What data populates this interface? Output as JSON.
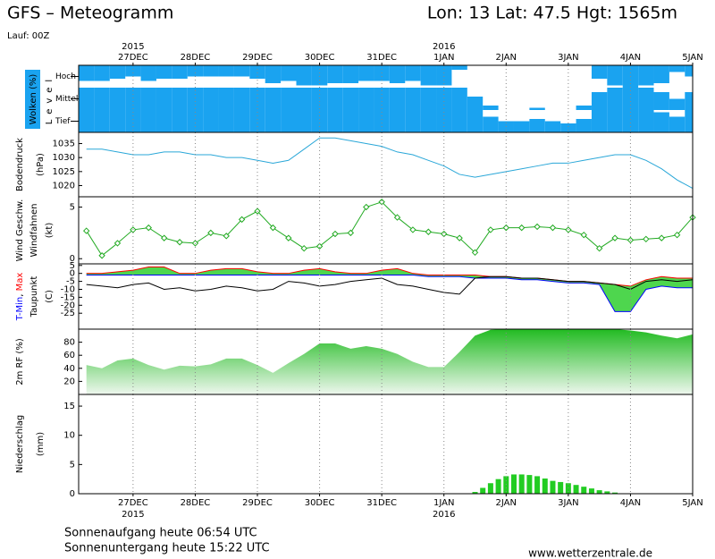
{
  "header": {
    "title": "GFS – Meteogramm",
    "location": "Lon: 13 Lat: 47.5 Hgt: 1565m",
    "run": "Lauf: 00Z"
  },
  "footer": {
    "sunrise": "Sonnenaufgang heute 06:54 UTC",
    "sunset": "Sonnenuntergang heute 15:22 UTC",
    "source": "www.wetterzentrale.de"
  },
  "chart_data": [
    {
      "type": "clouds",
      "ylabel": [
        "Wolken (%)",
        "Level"
      ],
      "color": "#1aa3f0",
      "xlim": [
        -21,
        216
      ],
      "xticks": [
        {
          "value": 0,
          "label": "27DEC"
        },
        {
          "value": 24,
          "label": "28DEC"
        },
        {
          "value": 48,
          "label": "29DEC"
        },
        {
          "value": 72,
          "label": "30DEC"
        },
        {
          "value": 96,
          "label": "31DEC"
        },
        {
          "value": 120,
          "label": "1JAN"
        },
        {
          "value": 144,
          "label": "2JAN"
        },
        {
          "value": 168,
          "label": "3JAN"
        },
        {
          "value": 192,
          "label": "4JAN"
        },
        {
          "value": 216,
          "label": "5JAN"
        }
      ],
      "year_labels": [
        {
          "value": 0,
          "label": "2015"
        },
        {
          "value": 120,
          "label": "2016"
        }
      ],
      "x": [
        -18,
        -12,
        -6,
        0,
        6,
        12,
        18,
        24,
        30,
        36,
        42,
        48,
        54,
        60,
        66,
        72,
        78,
        84,
        90,
        96,
        102,
        108,
        114,
        120,
        126,
        132,
        138,
        144,
        150,
        156,
        162,
        168,
        174,
        180,
        186,
        192,
        198,
        204,
        210,
        216
      ],
      "series": [
        {
          "name": "Hoch",
          "values": [
            70,
            70,
            60,
            50,
            70,
            60,
            60,
            50,
            50,
            50,
            50,
            60,
            80,
            70,
            90,
            90,
            80,
            80,
            70,
            70,
            80,
            70,
            90,
            90,
            20,
            0,
            0,
            0,
            0,
            0,
            0,
            0,
            0,
            60,
            90,
            100,
            90,
            80,
            30,
            50
          ]
        },
        {
          "name": "Mittel",
          "values": [
            100,
            100,
            100,
            100,
            100,
            100,
            100,
            100,
            100,
            100,
            100,
            100,
            100,
            100,
            100,
            100,
            100,
            100,
            100,
            100,
            100,
            100,
            100,
            100,
            100,
            60,
            20,
            0,
            0,
            10,
            0,
            0,
            20,
            80,
            100,
            100,
            100,
            80,
            50,
            80
          ]
        },
        {
          "name": "Tief",
          "values": [
            100,
            100,
            100,
            100,
            100,
            100,
            100,
            100,
            100,
            100,
            100,
            100,
            100,
            100,
            100,
            100,
            100,
            100,
            100,
            100,
            100,
            100,
            100,
            100,
            100,
            100,
            70,
            50,
            50,
            60,
            50,
            40,
            60,
            100,
            100,
            100,
            100,
            90,
            70,
            100
          ]
        }
      ]
    },
    {
      "type": "line",
      "ylabel": [
        "Bodendruck",
        "(hPa)"
      ],
      "color": "#2aa7d8",
      "xlim": [
        -21,
        216
      ],
      "ylim": [
        1016,
        1039
      ],
      "yticks": [
        1020,
        1025,
        1030,
        1035
      ],
      "x": [
        -18,
        -12,
        -6,
        0,
        6,
        12,
        18,
        24,
        30,
        36,
        42,
        48,
        54,
        60,
        66,
        72,
        78,
        84,
        90,
        96,
        102,
        108,
        114,
        120,
        126,
        132,
        138,
        144,
        150,
        156,
        162,
        168,
        174,
        180,
        186,
        192,
        198,
        204,
        210,
        216
      ],
      "values": [
        1033,
        1033,
        1032,
        1031,
        1031,
        1032,
        1032,
        1031,
        1031,
        1030,
        1030,
        1029,
        1028,
        1029,
        1033,
        1037,
        1037,
        1036,
        1035,
        1034,
        1032,
        1031,
        1029,
        1027,
        1024,
        1023,
        1024,
        1025,
        1026,
        1027,
        1028,
        1028,
        1029,
        1030,
        1031,
        1031,
        1029,
        1026,
        1022,
        1019
      ]
    },
    {
      "type": "wind",
      "ylabel": [
        "Windfahnen",
        "(kt)"
      ],
      "xlim": [
        -21,
        216
      ],
      "ylim": [
        -0.5,
        6
      ],
      "yticks": [
        0,
        5
      ],
      "x": [
        -18,
        -12,
        -6,
        0,
        6,
        12,
        18,
        24,
        30,
        36,
        42,
        48,
        54,
        60,
        66,
        72,
        78,
        84,
        90,
        96,
        102,
        108,
        114,
        120,
        126,
        132,
        138,
        144,
        150,
        156,
        162,
        168,
        174,
        180,
        186,
        192,
        198,
        204,
        210,
        216
      ],
      "series": [
        {
          "name": "Wind Geschw.",
          "color": "#22aa22",
          "values": [
            2.7,
            0.3,
            1.5,
            2.8,
            3,
            2,
            1.6,
            1.5,
            2.5,
            2.2,
            3.8,
            4.6,
            3,
            2,
            1,
            1.2,
            2.4,
            2.5,
            5,
            5.5,
            4,
            2.8,
            2.6,
            2.4,
            2,
            0.6,
            2.8,
            3,
            3,
            3.1,
            3,
            2.8,
            2.3,
            1,
            2,
            1.8,
            1.9,
            2,
            2.3,
            4
          ]
        }
      ]
    },
    {
      "type": "temperature",
      "unit": "(C)",
      "legend_separator": ", ",
      "band_color": "#22cc22",
      "xlim": [
        -21,
        216
      ],
      "ylim": [
        -35,
        6
      ],
      "yticks": [
        5,
        0,
        -5,
        -10,
        -15,
        -20,
        -25
      ],
      "x": [
        -18,
        -12,
        -6,
        0,
        6,
        12,
        18,
        24,
        30,
        36,
        42,
        48,
        54,
        60,
        66,
        72,
        78,
        84,
        90,
        96,
        102,
        108,
        114,
        120,
        126,
        132,
        138,
        144,
        150,
        156,
        162,
        168,
        174,
        180,
        186,
        192,
        198,
        204,
        210,
        216
      ],
      "series": [
        {
          "name": "T-Min",
          "color": "#0000ff",
          "values": [
            -1,
            -1,
            -1,
            -1,
            -1,
            -1,
            -1,
            -1,
            -1,
            -1,
            -1,
            -1,
            -1,
            -1,
            -1,
            -1,
            -1,
            -1,
            -1,
            -1,
            -1,
            -1,
            -2,
            -2,
            -2,
            -3,
            -3,
            -3,
            -4,
            -4,
            -5,
            -6,
            -6,
            -7,
            -24,
            -24,
            -10,
            -8,
            -9,
            -9
          ]
        },
        {
          "name": "Max",
          "color": "#ff0000",
          "values": [
            0,
            0,
            1,
            2,
            4,
            4,
            0,
            0,
            2,
            3,
            3,
            1,
            0,
            0,
            2,
            3,
            1,
            0,
            0,
            2,
            3,
            0,
            -1,
            -1,
            -1,
            -1,
            -2,
            -2,
            -3,
            -3,
            -4,
            -5,
            -5,
            -6,
            -7,
            -8,
            -4,
            -2,
            -3,
            -3
          ]
        },
        {
          "name": "Taupunkt",
          "color": "#000000",
          "values": [
            -7,
            -8,
            -9,
            -7,
            -6,
            -10,
            -9,
            -11,
            -10,
            -8,
            -9,
            -11,
            -10,
            -5,
            -6,
            -8,
            -7,
            -5,
            -4,
            -3,
            -7,
            -8,
            -10,
            -12,
            -13,
            -3,
            -2,
            -2,
            -3,
            -3,
            -4,
            -5,
            -5,
            -6,
            -7,
            -10,
            -5,
            -4,
            -5,
            -4
          ]
        }
      ]
    },
    {
      "type": "area",
      "ylabel": [
        "2m RF (%)"
      ],
      "color": "#22bb22",
      "xlim": [
        -21,
        216
      ],
      "ylim": [
        0,
        100
      ],
      "yticks": [
        20,
        40,
        60,
        80
      ],
      "x": [
        -18,
        -12,
        -6,
        0,
        6,
        12,
        18,
        24,
        30,
        36,
        42,
        48,
        54,
        60,
        66,
        72,
        78,
        84,
        90,
        96,
        102,
        108,
        114,
        120,
        126,
        132,
        138,
        144,
        150,
        156,
        162,
        168,
        174,
        180,
        186,
        192,
        198,
        204,
        210,
        216
      ],
      "values": [
        45,
        40,
        52,
        55,
        45,
        38,
        44,
        43,
        46,
        55,
        55,
        45,
        33,
        48,
        62,
        78,
        78,
        70,
        74,
        70,
        62,
        50,
        42,
        42,
        65,
        90,
        99,
        100,
        100,
        100,
        100,
        100,
        100,
        100,
        100,
        98,
        95,
        90,
        86,
        92
      ]
    },
    {
      "type": "bar",
      "ylabel": [
        "Niederschlag",
        "(mm)"
      ],
      "color": "#22cc22",
      "xlim": [
        -21,
        216
      ],
      "ylim": [
        0,
        17
      ],
      "yticks": [
        0,
        5,
        10,
        15
      ],
      "xticks": [
        {
          "value": 0,
          "label": "27DEC"
        },
        {
          "value": 24,
          "label": "28DEC"
        },
        {
          "value": 48,
          "label": "29DEC"
        },
        {
          "value": 72,
          "label": "30DEC"
        },
        {
          "value": 96,
          "label": "31DEC"
        },
        {
          "value": 120,
          "label": "1JAN"
        },
        {
          "value": 144,
          "label": "2JAN"
        },
        {
          "value": 168,
          "label": "3JAN"
        },
        {
          "value": 192,
          "label": "4JAN"
        },
        {
          "value": 216,
          "label": "5JAN"
        }
      ],
      "year_labels": [
        {
          "value": 0,
          "label": "2015"
        },
        {
          "value": 120,
          "label": "2016"
        }
      ],
      "x": [
        132,
        135,
        138,
        141,
        144,
        147,
        150,
        153,
        156,
        159,
        162,
        165,
        168,
        171,
        174,
        177,
        180,
        183,
        186
      ],
      "values": [
        0.3,
        1,
        1.8,
        2.5,
        3,
        3.3,
        3.3,
        3.2,
        3,
        2.6,
        2.2,
        2,
        1.8,
        1.5,
        1.2,
        0.9,
        0.6,
        0.4,
        0.2
      ]
    }
  ]
}
